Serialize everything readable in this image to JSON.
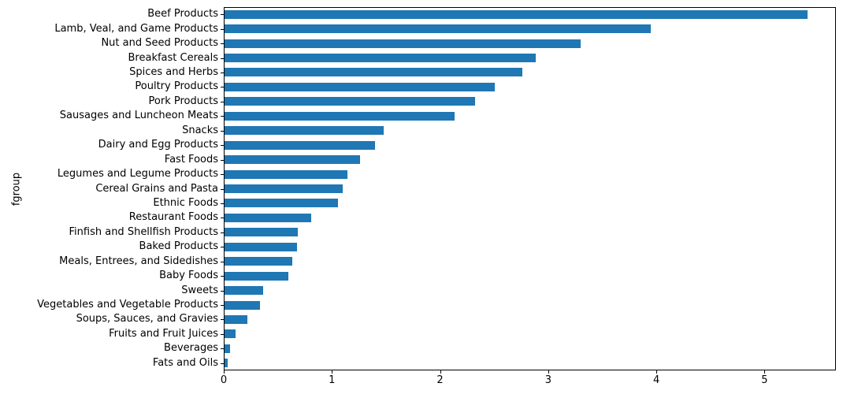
{
  "chart_data": {
    "type": "bar",
    "orientation": "horizontal",
    "title": "",
    "xlabel": "",
    "ylabel": "fgroup",
    "categories": [
      "Beef Products",
      "Lamb, Veal, and Game Products",
      "Nut and Seed Products",
      "Breakfast Cereals",
      "Spices and Herbs",
      "Poultry Products",
      "Pork Products",
      "Sausages and Luncheon Meats",
      "Snacks",
      "Dairy and Egg Products",
      "Fast Foods",
      "Legumes and Legume Products",
      "Cereal Grains and Pasta",
      "Ethnic Foods",
      "Restaurant Foods",
      "Finfish and Shellfish Products",
      "Baked Products",
      "Meals, Entrees, and Sidedishes",
      "Baby Foods",
      "Sweets",
      "Vegetables and Vegetable Products",
      "Soups, Sauces, and Gravies",
      "Fruits and Fruit Juices",
      "Beverages",
      "Fats and Oils"
    ],
    "values": [
      5.39,
      3.94,
      3.29,
      2.88,
      2.75,
      2.5,
      2.32,
      2.13,
      1.47,
      1.39,
      1.25,
      1.14,
      1.09,
      1.05,
      0.8,
      0.68,
      0.67,
      0.63,
      0.59,
      0.36,
      0.33,
      0.21,
      0.1,
      0.05,
      0.03
    ],
    "x_ticks": [
      0,
      1,
      2,
      3,
      4,
      5
    ],
    "xlim": [
      0,
      5.66
    ],
    "grid": false,
    "legend": false,
    "bar_color": "#1f77b4",
    "axis_color": "#000000"
  }
}
